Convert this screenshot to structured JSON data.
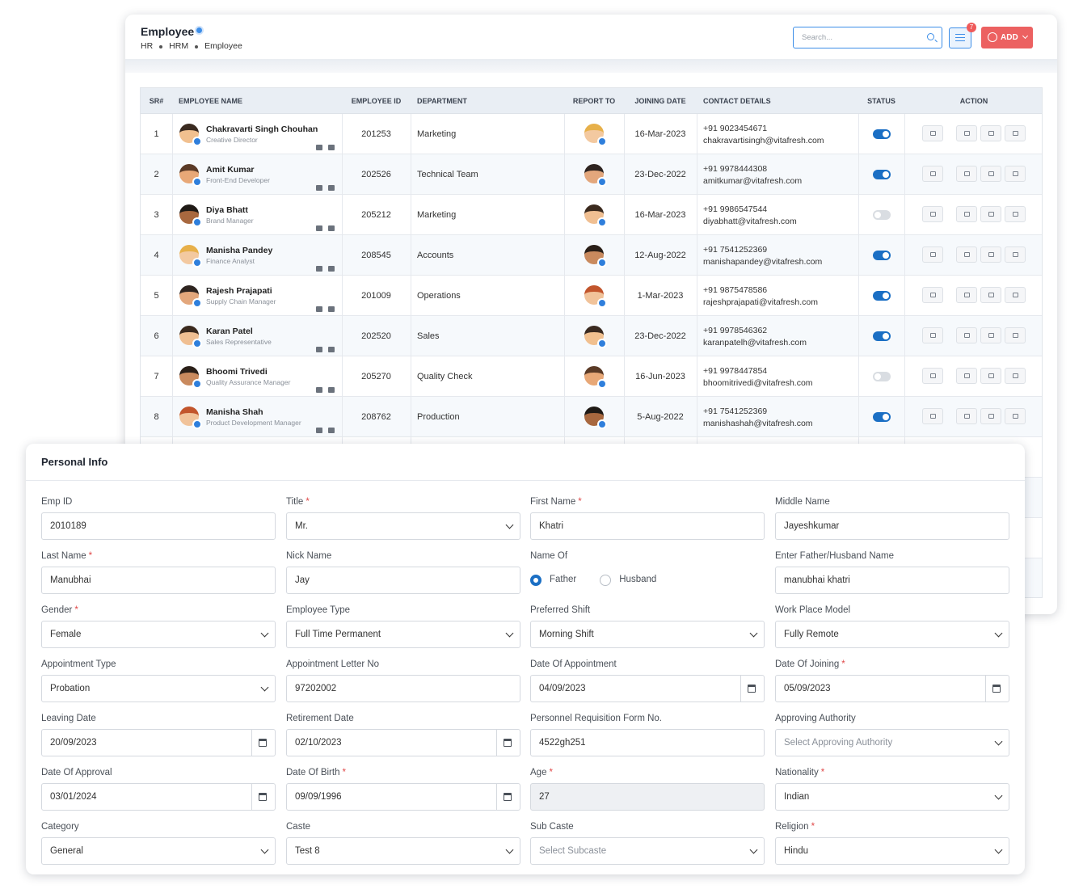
{
  "header": {
    "title": "Employee",
    "breadcrumb": [
      "HR",
      "HRM",
      "Employee"
    ],
    "search_placeholder": "Search...",
    "filter_badge": "7",
    "add_button": "ADD"
  },
  "table": {
    "columns": [
      "SR#",
      "EMPLOYEE NAME",
      "EMPLOYEE ID",
      "DEPARTMENT",
      "REPORT TO",
      "JOINING DATE",
      "CONTACT DETAILS",
      "STATUS",
      "ACTION"
    ],
    "rows": [
      {
        "sr": "1",
        "name": "Chakravarti Singh Chouhan",
        "role": "Creative Director",
        "emp_id": "201253",
        "department": "Marketing",
        "joining_date": "16-Mar-2023",
        "phone": "+91 9023454671",
        "email": "chakravartisingh@vitafresh.com",
        "status": true
      },
      {
        "sr": "2",
        "name": "Amit Kumar",
        "role": "Front-End Developer",
        "emp_id": "202526",
        "department": "Technical Team",
        "joining_date": "23-Dec-2022",
        "phone": "+91 9978444308",
        "email": "amitkumar@vitafresh.com",
        "status": true
      },
      {
        "sr": "3",
        "name": "Diya Bhatt",
        "role": "Brand Manager",
        "emp_id": "205212",
        "department": "Marketing",
        "joining_date": "16-Mar-2023",
        "phone": "+91 9986547544",
        "email": "diyabhatt@vitafresh.com",
        "status": false
      },
      {
        "sr": "4",
        "name": "Manisha Pandey",
        "role": "Finance Analyst",
        "emp_id": "208545",
        "department": "Accounts",
        "joining_date": "12-Aug-2022",
        "phone": "+91 7541252369",
        "email": "manishapandey@vitafresh.com",
        "status": true
      },
      {
        "sr": "5",
        "name": "Rajesh Prajapati",
        "role": "Supply Chain Manager",
        "emp_id": "201009",
        "department": "Operations",
        "joining_date": "1-Mar-2023",
        "phone": "+91 9875478586",
        "email": "rajeshprajapati@vitafresh.com",
        "status": true
      },
      {
        "sr": "6",
        "name": "Karan Patel",
        "role": "Sales Representative",
        "emp_id": "202520",
        "department": "Sales",
        "joining_date": "23-Dec-2022",
        "phone": "+91 9978546362",
        "email": "karanpatelh@vitafresh.com",
        "status": true
      },
      {
        "sr": "7",
        "name": "Bhoomi Trivedi",
        "role": "Quality Assurance Manager",
        "emp_id": "205270",
        "department": "Quality Check",
        "joining_date": "16-Jun-2023",
        "phone": "+91 9978447854",
        "email": "bhoomitrivedi@vitafresh.com",
        "status": false
      },
      {
        "sr": "8",
        "name": "Manisha Shah",
        "role": "Product Development Manager",
        "emp_id": "208762",
        "department": "Production",
        "joining_date": "5-Aug-2022",
        "phone": "+91 7541252369",
        "email": "manishashah@vitafresh.com",
        "status": true
      }
    ]
  },
  "form": {
    "title": "Personal Info",
    "required_mark": "*",
    "fields": [
      {
        "label": "Emp ID",
        "type": "text",
        "value": "2010189"
      },
      {
        "label": "Title",
        "required": true,
        "type": "select",
        "value": "Mr."
      },
      {
        "label": "First Name",
        "required": true,
        "type": "text",
        "value": "Khatri"
      },
      {
        "label": "Middle Name",
        "type": "text",
        "value": "Jayeshkumar"
      },
      {
        "label": "Last Name",
        "required": true,
        "type": "text",
        "value": "Manubhai"
      },
      {
        "label": "Nick Name",
        "type": "text",
        "value": "Jay"
      },
      {
        "label": "Name Of",
        "type": "radio",
        "options": [
          "Father",
          "Husband"
        ],
        "selected": 0
      },
      {
        "label": "Enter Father/Husband Name",
        "type": "text",
        "value": "manubhai khatri"
      },
      {
        "label": "Gender",
        "required": true,
        "type": "select",
        "value": "Female"
      },
      {
        "label": "Employee Type",
        "type": "select",
        "value": "Full Time Permanent"
      },
      {
        "label": "Preferred Shift",
        "type": "select",
        "value": "Morning Shift"
      },
      {
        "label": "Work Place Model",
        "type": "select",
        "value": "Fully Remote"
      },
      {
        "label": "Appointment Type",
        "type": "select",
        "value": "Probation"
      },
      {
        "label": "Appointment Letter No",
        "type": "text",
        "value": "97202002"
      },
      {
        "label": "Date Of Appointment",
        "type": "date",
        "value": "04/09/2023"
      },
      {
        "label": "Date Of Joining",
        "required": true,
        "type": "date",
        "value": "05/09/2023"
      },
      {
        "label": "Leaving Date",
        "type": "date",
        "value": "20/09/2023"
      },
      {
        "label": "Retirement Date",
        "type": "date",
        "value": "02/10/2023"
      },
      {
        "label": "Personnel Requisition Form No.",
        "type": "text",
        "value": "4522gh251"
      },
      {
        "label": "Approving Authority",
        "type": "select",
        "placeholder": "Select Approving Authority"
      },
      {
        "label": "Date Of Approval",
        "type": "date",
        "value": "03/01/2024"
      },
      {
        "label": "Date Of Birth",
        "required": true,
        "type": "date",
        "value": "09/09/1996"
      },
      {
        "label": "Age",
        "required": true,
        "type": "text",
        "value": "27",
        "disabled": true
      },
      {
        "label": "Nationality",
        "required": true,
        "type": "select",
        "value": "Indian"
      },
      {
        "label": "Category",
        "type": "select",
        "value": "General"
      },
      {
        "label": "Caste",
        "type": "select",
        "value": "Test 8"
      },
      {
        "label": "Sub Caste",
        "type": "select",
        "placeholder": "Select Subcaste"
      },
      {
        "label": "Religion",
        "required": true,
        "type": "select",
        "value": "Hindu"
      }
    ]
  }
}
